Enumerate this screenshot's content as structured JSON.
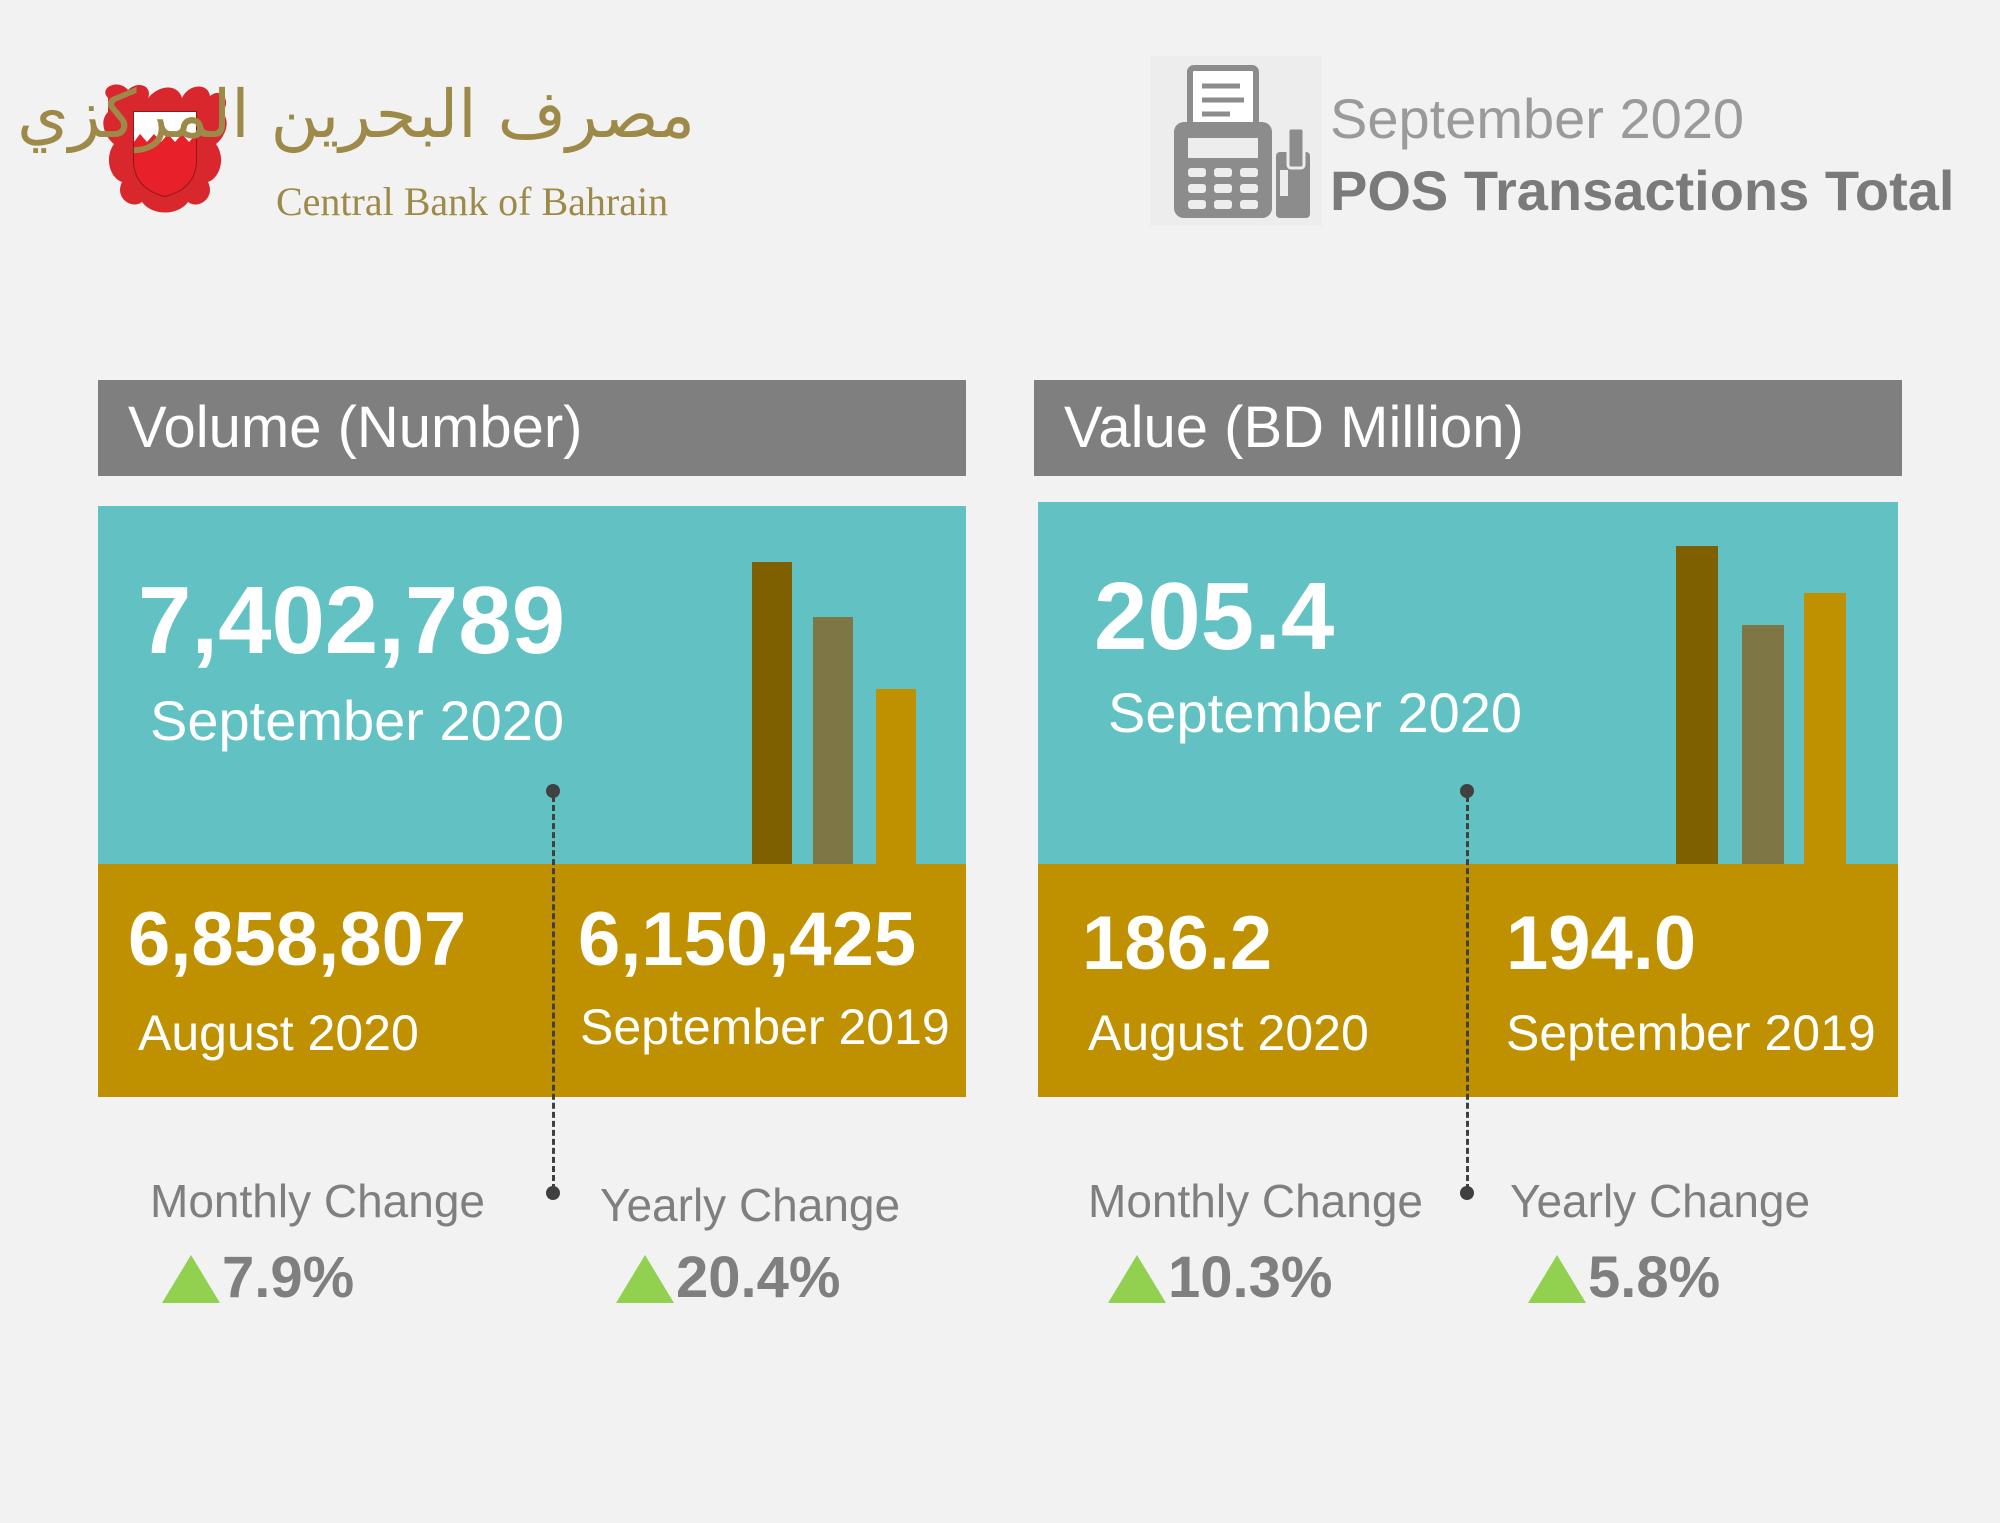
{
  "header": {
    "logo_arabic": "مصرف البحرين المركزي",
    "logo_english": "Central Bank of Bahrain",
    "date": "September 2020",
    "title": "POS Transactions Total",
    "icon": "pos-terminal-icon"
  },
  "colors": {
    "title_bar": "#7f7f7f",
    "teal": "#62c1c3",
    "gold": "#bf9000",
    "bar_dark": "#7f6000",
    "bar_mid": "#7f7646",
    "bar_light": "#bf9000",
    "up_arrow": "#92d050"
  },
  "volume": {
    "title": "Volume (Number)",
    "current_value": "7,402,789",
    "current_label": "September 2020",
    "prev_month_value": "6,858,807",
    "prev_month_label": "August 2020",
    "prev_year_value": "6,150,425",
    "prev_year_label": "September 2019",
    "monthly_change_label": "Monthly Change",
    "monthly_change_value": "7.9%",
    "yearly_change_label": "Yearly Change",
    "yearly_change_value": "20.4%",
    "bars": [
      7402789,
      6858807,
      6150425
    ]
  },
  "value": {
    "title": "Value (BD Million)",
    "current_value": "205.4",
    "current_label": "September 2020",
    "prev_month_value": "186.2",
    "prev_month_label": "August 2020",
    "prev_year_value": "194.0",
    "prev_year_label": "September 2019",
    "monthly_change_label": "Monthly Change",
    "monthly_change_value": "10.3%",
    "yearly_change_label": "Yearly Change",
    "yearly_change_value": "5.8%",
    "bars": [
      205.4,
      186.2,
      194.0
    ]
  }
}
